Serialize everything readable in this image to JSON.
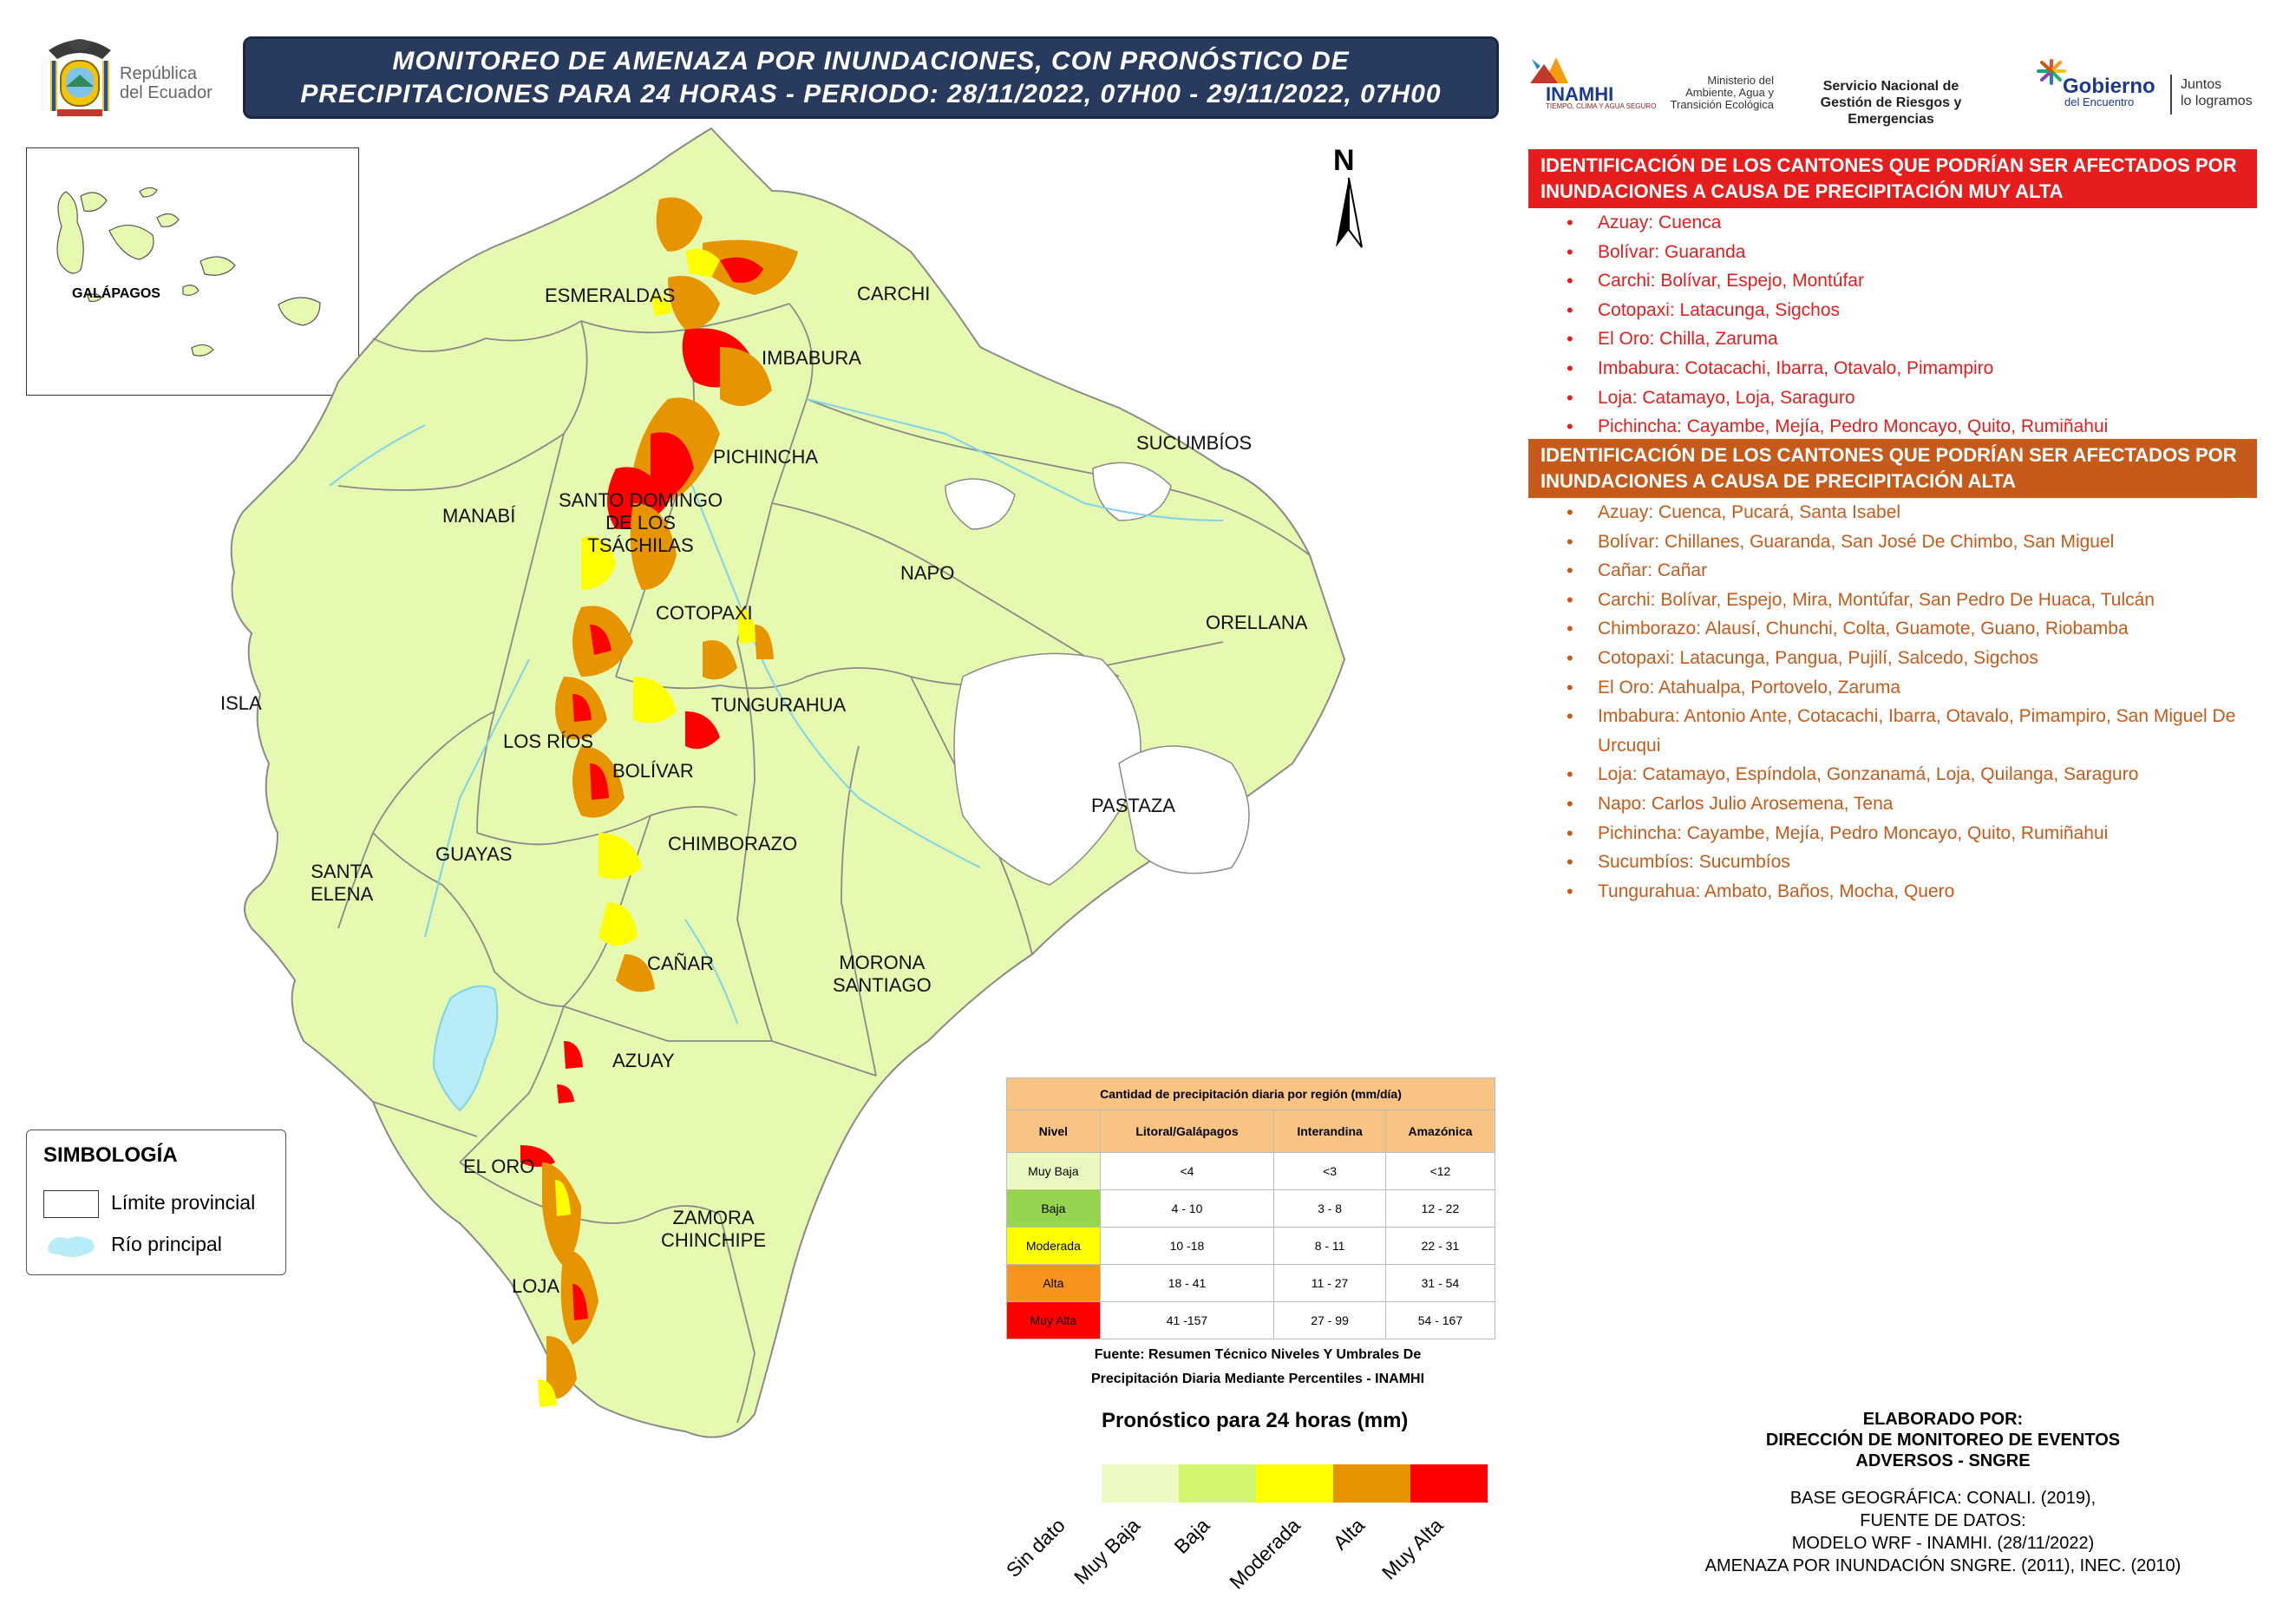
{
  "header": {
    "title_line1": "MONITOREO DE AMENAZA POR INUNDACIONES, CON PRONÓSTICO DE",
    "title_line2": "PRECIPITACIONES  PARA 24  HORAS - PERIODO: 28/11/2022, 07H00 - 29/11/2022, 07H00",
    "republica": "República",
    "del_ecuador": "del Ecuador",
    "inamhi": "INAMHI",
    "inamhi_sub": "TIEMPO, CLIMA Y AGUA SEGURO",
    "ministerio": "Ministerio del Ambiente, Agua y Transición Ecológica",
    "sngre": "Servicio Nacional de Gestión de Riesgos y Emergencias",
    "gobierno": "Gobierno",
    "del_encuentro": "del Encuentro",
    "slogan_1": "Juntos",
    "slogan_2": "lo logramos"
  },
  "inset": {
    "label": "GALÁPAGOS"
  },
  "north": "N",
  "provinces": {
    "esmeraldas": "ESMERALDAS",
    "carchi": "CARCHI",
    "imbabura": "IMBABURA",
    "pichincha": "PICHINCHA",
    "sucumbios": "SUCUMBÍOS",
    "manabi": "MANABÍ",
    "santo_domingo_1": "SANTO DOMINGO",
    "santo_domingo_2": "DE LOS",
    "santo_domingo_3": "TSÁCHILAS",
    "napo": "NAPO",
    "orellana": "ORELLANA",
    "cotopaxi": "COTOPAXI",
    "isla": "ISLA",
    "los_rios": "LOS RÍOS",
    "tungurahua": "TUNGURAHUA",
    "bolivar": "BOLÍVAR",
    "pastaza": "PASTAZA",
    "chimborazo": "CHIMBORAZO",
    "santa_elena_1": "SANTA",
    "santa_elena_2": "ELENA",
    "guayas": "GUAYAS",
    "canar": "CAÑAR",
    "morona_1": "MORONA",
    "morona_2": "SANTIAGO",
    "azuay": "AZUAY",
    "el_oro": "EL ORO",
    "zamora_1": "ZAMORA",
    "zamora_2": "CHINCHIPE",
    "loja": "LOJA"
  },
  "muy_alta_panel": {
    "heading_1": "IDENTIFICACIÓN DE LOS CANTONES QUE PODRÍAN SER AFECTADOS POR",
    "heading_2": "INUNDACIONES A CAUSA DE  PRECIPITACIÓN MUY ALTA",
    "items": [
      "Azuay: Cuenca",
      "Bolívar: Guaranda",
      "Carchi: Bolívar, Espejo, Montúfar",
      "Cotopaxi: Latacunga, Sigchos",
      "El Oro: Chilla, Zaruma",
      "Imbabura: Cotacachi, Ibarra, Otavalo, Pimampiro",
      "Loja: Catamayo, Loja, Saraguro",
      "Pichincha: Cayambe, Mejía, Pedro Moncayo, Quito, Rumiñahui"
    ]
  },
  "alta_panel": {
    "heading_1": "IDENTIFICACIÓN DE LOS CANTONES QUE PODRÍAN SER AFECTADOS POR",
    "heading_2": "INUNDACIONES A CAUSA DE  PRECIPITACIÓN  ALTA",
    "items": [
      "Azuay: Cuenca, Pucará, Santa Isabel",
      "Bolívar: Chillanes, Guaranda, San José De Chimbo, San Miguel",
      "Cañar: Cañar",
      "Carchi: Bolívar, Espejo, Mira, Montúfar, San Pedro De Huaca, Tulcán",
      "Chimborazo: Alausí, Chunchi, Colta, Guamote, Guano, Riobamba",
      "Cotopaxi: Latacunga, Pangua, Pujilí, Salcedo, Sigchos",
      "El Oro: Atahualpa, Portovelo, Zaruma",
      "Imbabura: Antonio Ante, Cotacachi, Ibarra, Otavalo, Pimampiro, San Miguel De Urcuqui",
      "Loja: Catamayo, Espíndola, Gonzanamá, Loja, Quilanga, Saraguro",
      "Napo: Carlos Julio Arosemena, Tena",
      "Pichincha: Cayambe, Mejía, Pedro Moncayo, Quito, Rumiñahui",
      "Sucumbíos: Sucumbíos",
      "Tungurahua: Ambato, Baños, Mocha, Quero"
    ]
  },
  "simbologia": {
    "title": "SIMBOLOGÍA",
    "limite": "Límite provincial",
    "rio": "Río principal"
  },
  "table": {
    "title": "Cantidad de precipitación diaria por región (mm/día)",
    "headers": [
      "Nivel",
      "Litoral/Galápagos",
      "Interandina",
      "Amazónica"
    ],
    "rows": [
      {
        "nivel": "Muy Baja",
        "color": "#e9f9c0",
        "values": [
          "<4",
          "<3",
          "<12"
        ]
      },
      {
        "nivel": "Baja",
        "color": "#94d44e",
        "values": [
          "4 - 10",
          "3 - 8",
          "12 - 22"
        ]
      },
      {
        "nivel": "Moderada",
        "color": "#ffff00",
        "values": [
          "10 -18",
          "8 - 11",
          "22 - 31"
        ]
      },
      {
        "nivel": "Alta",
        "color": "#f7941d",
        "values": [
          "18 - 41",
          "11 - 27",
          "31 - 54"
        ]
      },
      {
        "nivel": "Muy Alta",
        "color": "#ff0000",
        "values": [
          "41 -157",
          "27 - 99",
          "54 - 167"
        ]
      }
    ]
  },
  "fuente_1": "Fuente: Resumen Técnico Niveles Y Umbrales De",
  "fuente_2": "Precipitación Diaria Mediante Percentiles - INAMHI",
  "pronostico": {
    "title": "Pronóstico para 24 horas (mm)",
    "classes": [
      {
        "label": "Sin dato",
        "color": "#eefac4"
      },
      {
        "label": "Muy Baja",
        "color": "#e6f9b0"
      },
      {
        "label": "Baja",
        "color": "#d2f56e"
      },
      {
        "label": "Moderada",
        "color": "#ffff00"
      },
      {
        "label": "Alta",
        "color": "#e69500"
      },
      {
        "label": "Muy Alta",
        "color": "#ff0000"
      }
    ]
  },
  "credits": {
    "elab_1": "ELABORADO POR:",
    "elab_2": "DIRECCIÓN DE MONITOREO DE EVENTOS",
    "elab_3": "ADVERSOS - SNGRE",
    "base_1": "BASE GEOGRÁFICA: CONALI. (2019),",
    "base_2": "FUENTE DE DATOS:",
    "base_3": "MODELO WRF - INAMHI. (28/11/2022)",
    "base_4": "AMENAZA POR INUNDACIÓN SNGRE. (2011), INEC. (2010)"
  },
  "colors": {
    "land": "#e6f9b0",
    "land_light": "#dbf3a0",
    "water": "#b8ecf6",
    "header_bg": "#283a5e"
  }
}
